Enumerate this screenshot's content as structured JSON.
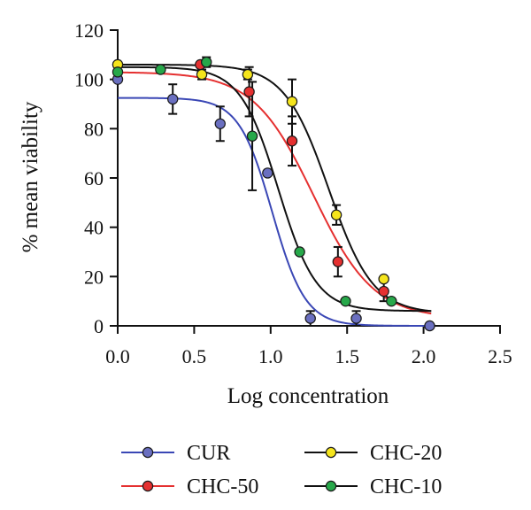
{
  "chart_data": {
    "type": "scatter",
    "title": "",
    "xlabel": "Log concentration",
    "ylabel": "% mean viability",
    "xlim": [
      0,
      2.5
    ],
    "ylim": [
      0,
      120
    ],
    "xticks": [
      "0.0",
      "0.5",
      "1.0",
      "1.5",
      "2.0",
      "2.5"
    ],
    "yticks": [
      "0",
      "20",
      "40",
      "60",
      "80",
      "100",
      "120"
    ],
    "grid": false,
    "legend_position": "bottom",
    "series": [
      {
        "name": "CUR",
        "color": "#6a6fc0",
        "line_color": "#3a47b5",
        "points": [
          {
            "x": 0.0,
            "y": 100,
            "err": 0
          },
          {
            "x": 0.36,
            "y": 92,
            "err": 6
          },
          {
            "x": 0.67,
            "y": 82,
            "err": 7
          },
          {
            "x": 0.98,
            "y": 62,
            "err": 0
          },
          {
            "x": 1.26,
            "y": 3,
            "err": 3
          },
          {
            "x": 1.56,
            "y": 3,
            "err": 3
          },
          {
            "x": 2.04,
            "y": 0,
            "err": 0
          }
        ],
        "fit": {
          "top": 92.5,
          "bottom": 0,
          "logEC50": 1.01,
          "hill": 4.0
        }
      },
      {
        "name": "CHC-50",
        "color": "#e53030",
        "line_color": "#e53030",
        "points": [
          {
            "x": 0.0,
            "y": 106,
            "err": 0
          },
          {
            "x": 0.54,
            "y": 106,
            "err": 0
          },
          {
            "x": 0.86,
            "y": 95,
            "err": 10
          },
          {
            "x": 1.14,
            "y": 75,
            "err": 10
          },
          {
            "x": 1.44,
            "y": 26,
            "err": 6
          },
          {
            "x": 1.74,
            "y": 14,
            "err": 4
          }
        ],
        "fit": {
          "top": 103,
          "bottom": 3,
          "logEC50": 1.28,
          "hill": 2.2
        }
      },
      {
        "name": "CHC-20",
        "color": "#f5e51c",
        "line_color": "#111111",
        "points": [
          {
            "x": 0.0,
            "y": 106,
            "err": 0
          },
          {
            "x": 0.55,
            "y": 102,
            "err": 2
          },
          {
            "x": 0.85,
            "y": 102,
            "err": 2
          },
          {
            "x": 1.14,
            "y": 91,
            "err": 9
          },
          {
            "x": 1.43,
            "y": 45,
            "err": 4
          },
          {
            "x": 1.74,
            "y": 19,
            "err": 0
          }
        ],
        "fit": {
          "top": 106,
          "bottom": 5,
          "logEC50": 1.38,
          "hill": 3.0
        }
      },
      {
        "name": "CHC-10",
        "color": "#27a84a",
        "line_color": "#111111",
        "points": [
          {
            "x": 0.0,
            "y": 103,
            "err": 0
          },
          {
            "x": 0.28,
            "y": 104,
            "err": 0
          },
          {
            "x": 0.58,
            "y": 107,
            "err": 2
          },
          {
            "x": 0.88,
            "y": 77,
            "err": 22
          },
          {
            "x": 1.19,
            "y": 30,
            "err": 0
          },
          {
            "x": 1.49,
            "y": 10,
            "err": 0
          },
          {
            "x": 1.79,
            "y": 10,
            "err": 0
          }
        ],
        "fit": {
          "top": 105,
          "bottom": 6,
          "logEC50": 1.05,
          "hill": 3.5
        }
      }
    ]
  }
}
